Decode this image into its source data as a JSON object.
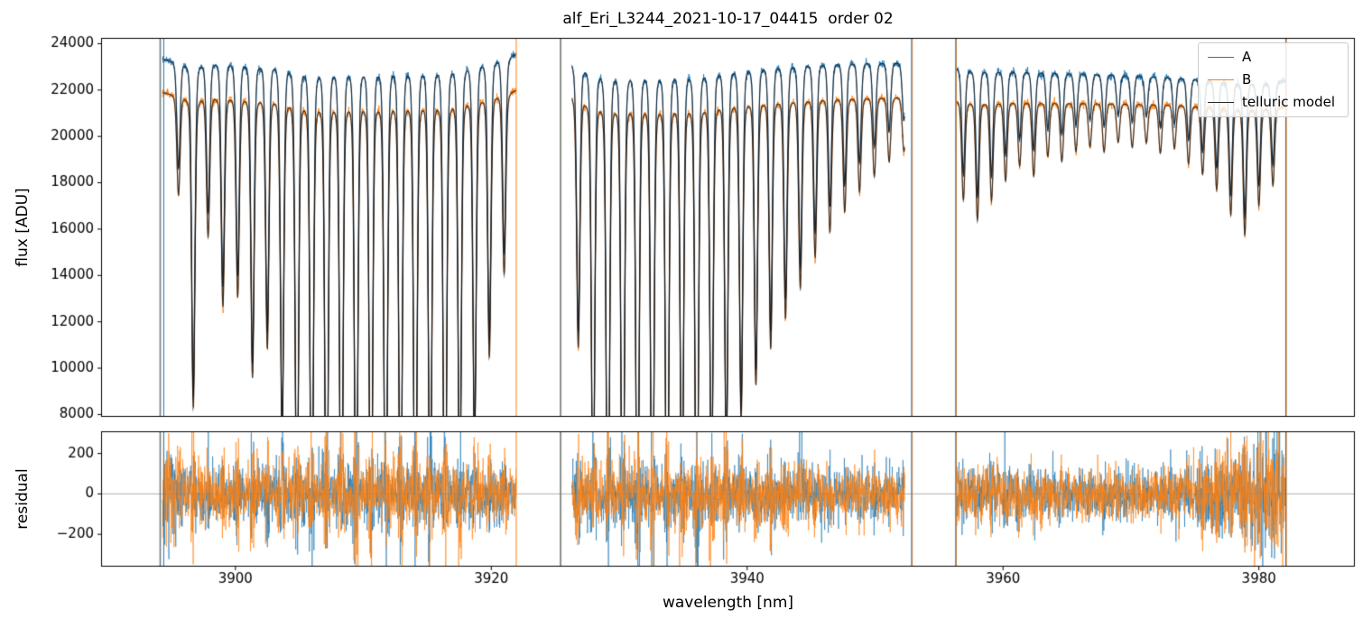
{
  "chart_data": {
    "type": "line",
    "title": "alf_Eri_L3244_2021-10-17_04415  order 02",
    "xlabel": "wavelength [nm]",
    "xlim": [
      3889.5,
      3987.5
    ],
    "xticks": [
      3900,
      3920,
      3940,
      3960,
      3980
    ],
    "panels": [
      {
        "name": "flux",
        "ylabel": "flux [ADU]",
        "ylim": [
          7900,
          24250
        ],
        "yticks": [
          8000,
          10000,
          12000,
          14000,
          16000,
          18000,
          20000,
          22000,
          24000
        ]
      },
      {
        "name": "residual",
        "ylabel": "residual",
        "ylim": [
          -360,
          310
        ],
        "yticks": [
          -200,
          0,
          200
        ],
        "zero_line": 0
      }
    ],
    "legend": {
      "position": "upper right",
      "entries": [
        {
          "label": "A",
          "color": "#1f77b4"
        },
        {
          "label": "B",
          "color": "#ff7f0e"
        },
        {
          "label": "telluric model",
          "color": "#262626"
        }
      ]
    },
    "segments": [
      {
        "xrange": [
          3894.3,
          3921.95
        ],
        "continuum_A": [
          23350,
          23680,
          23620
        ],
        "continuum_B": [
          21900,
          22060,
          22050
        ],
        "lines": {
          "start": 3895.55,
          "step": 1.157,
          "depths": [
            0.2,
            0.62,
            0.28,
            0.42,
            0.4,
            0.56,
            0.5,
            0.68,
            0.88,
            0.97,
            1.0,
            1.0,
            0.96,
            1.0,
            1.0,
            0.94,
            1.0,
            0.9,
            1.0,
            0.82,
            0.7,
            0.52,
            0.36
          ]
        },
        "residual_ramps": [
          {
            "start": 3896.5,
            "end": 3894.3,
            "gain": 2.2
          }
        ]
      },
      {
        "xrange": [
          3926.3,
          3952.3
        ],
        "continuum_A": [
          23380,
          23520,
          23260
        ],
        "continuum_B": [
          21950,
          21900,
          21760
        ],
        "lines": {
          "start": 3926.8,
          "step": 1.157,
          "depths": [
            0.5,
            0.85,
            1.0,
            1.0,
            0.95,
            1.0,
            1.0,
            0.88,
            1.0,
            0.8,
            0.72,
            0.64,
            0.57,
            0.5,
            0.44,
            0.38,
            0.32,
            0.27,
            0.23,
            0.19,
            0.16,
            0.13,
            0.11
          ]
        },
        "residual_ramps": []
      },
      {
        "xrange": [
          3956.4,
          3982.1
        ],
        "continuum_A": [
          23050,
          22700,
          22420
        ],
        "continuum_B": [
          21620,
          21500,
          21320
        ],
        "lines": {
          "start": 3956.9,
          "step": 1.1,
          "depths": [
            0.2,
            0.24,
            0.2,
            0.16,
            0.13,
            0.15,
            0.11,
            0.12,
            0.1,
            0.09,
            0.1,
            0.08,
            0.09,
            0.08,
            0.1,
            0.09,
            0.12,
            0.14,
            0.17,
            0.22,
            0.26,
            0.2,
            0.16
          ]
        },
        "residual_ramps": [
          {
            "start": 3973,
            "end": 3982,
            "gain": 2.3
          }
        ]
      }
    ],
    "edge_spikes": [
      {
        "x": 3894.15,
        "series": [
          "A",
          "B"
        ]
      },
      {
        "x": 3894.45,
        "series": [
          "A"
        ]
      },
      {
        "x": 3921.95,
        "series": [
          "B"
        ]
      },
      {
        "x": 3925.45,
        "series": [
          "A",
          "B"
        ]
      },
      {
        "x": 3952.9,
        "series": [
          "A",
          "B"
        ]
      },
      {
        "x": 3956.35,
        "series": [
          "A",
          "B"
        ]
      },
      {
        "x": 3982.15,
        "series": [
          "A",
          "B"
        ]
      }
    ],
    "line_profile": {
      "sigma_nm": 0.125,
      "lorentz_gamma_nm": 0.16,
      "lorentz_weight": 0.28
    },
    "noise": {
      "flux_sigma": 80,
      "residual_sigma": 62,
      "core_flux_gain": 1.3,
      "core_residual_gain": 2.6
    },
    "sample_step_nm": 0.02,
    "seed": 7
  }
}
